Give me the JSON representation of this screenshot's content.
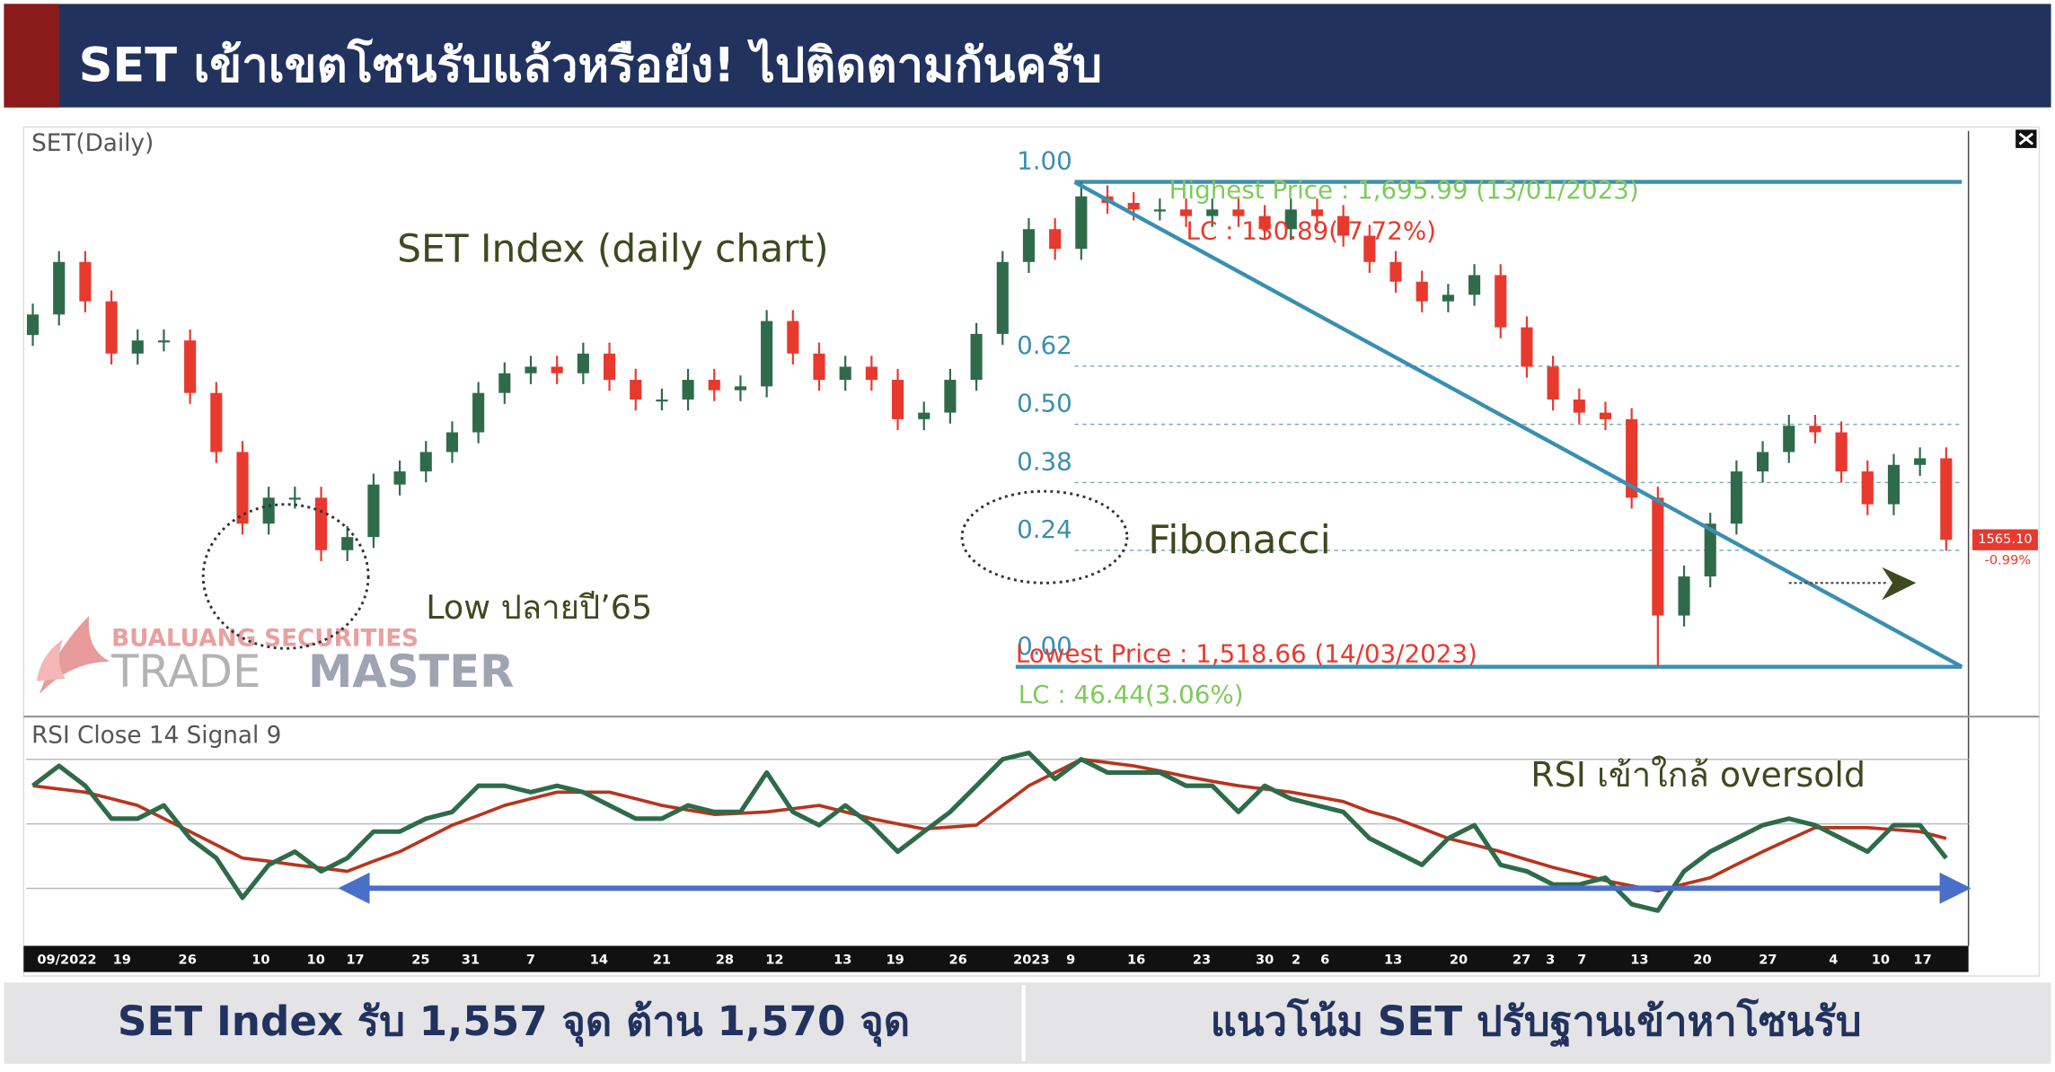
{
  "header": {
    "title": "SET เข้าเขตโซนรับแล้วหรือยัง! ไปติดตามกันครับ"
  },
  "chart_data": [
    {
      "type": "candlestick",
      "label": "SET(Daily)",
      "title": "SET Index (daily chart)",
      "open": [
        1640.0,
        1647.5,
        1666.7,
        1652.3,
        1633.2,
        1638.0,
        1638.0,
        1618.8,
        1597.2,
        1571.0,
        1580.5,
        1580.5,
        1561.3,
        1566.1,
        1585.3,
        1590.1,
        1597.2,
        1604.4,
        1618.8,
        1626.0,
        1628.4,
        1626.0,
        1633.2,
        1623.6,
        1616.4,
        1616.4,
        1623.6,
        1619.8,
        1621.2,
        1645.1,
        1633.2,
        1623.6,
        1628.4,
        1623.6,
        1609.2,
        1611.6,
        1623.6,
        1640.4,
        1666.7,
        1678.7,
        1671.5,
        1690.7,
        1688.3,
        1685.9,
        1685.9,
        1683.5,
        1685.9,
        1683.5,
        1678.7,
        1685.9,
        1683.5,
        1676.3,
        1666.7,
        1659.5,
        1652.3,
        1654.7,
        1661.9,
        1642.8,
        1628.4,
        1616.4,
        1611.6,
        1609.2,
        1580.5,
        1537.4,
        1551.7,
        1571.0,
        1590.1,
        1597.2,
        1606.8,
        1604.4,
        1590.1,
        1578.1,
        1592.5,
        1594.9
      ],
      "high": [
        1651.5,
        1670.7,
        1670.7,
        1656.3,
        1642.0,
        1642.0,
        1642.0,
        1622.8,
        1601.2,
        1584.5,
        1584.5,
        1584.5,
        1570.1,
        1589.3,
        1594.1,
        1601.2,
        1608.4,
        1622.8,
        1630.0,
        1632.4,
        1632.4,
        1637.2,
        1637.2,
        1627.6,
        1620.4,
        1627.6,
        1627.6,
        1625.2,
        1649.1,
        1649.1,
        1637.2,
        1632.4,
        1632.4,
        1627.6,
        1615.6,
        1627.6,
        1644.4,
        1670.7,
        1682.7,
        1682.7,
        1695.99,
        1694.7,
        1692.3,
        1689.9,
        1689.9,
        1689.9,
        1689.9,
        1687.5,
        1689.9,
        1689.9,
        1687.5,
        1680.3,
        1670.7,
        1663.5,
        1658.7,
        1665.9,
        1665.9,
        1646.8,
        1632.4,
        1620.4,
        1615.6,
        1613.2,
        1584.5,
        1555.7,
        1575.0,
        1594.1,
        1601.2,
        1610.8,
        1610.8,
        1608.4,
        1594.1,
        1596.5,
        1598.9,
        1598.9
      ],
      "low": [
        1636.0,
        1643.5,
        1648.3,
        1629.2,
        1629.2,
        1634.0,
        1614.8,
        1593.2,
        1567.0,
        1567.0,
        1576.5,
        1557.3,
        1557.3,
        1562.1,
        1581.3,
        1586.1,
        1593.2,
        1600.4,
        1614.8,
        1622.0,
        1622.0,
        1622.0,
        1619.6,
        1612.4,
        1612.4,
        1612.4,
        1615.8,
        1615.8,
        1617.2,
        1629.2,
        1619.6,
        1619.6,
        1619.6,
        1605.2,
        1605.2,
        1607.6,
        1619.6,
        1636.4,
        1662.7,
        1667.5,
        1667.5,
        1684.3,
        1681.9,
        1681.9,
        1679.5,
        1679.5,
        1679.5,
        1674.7,
        1674.7,
        1679.5,
        1672.3,
        1662.7,
        1655.5,
        1648.3,
        1648.3,
        1650.7,
        1638.8,
        1624.4,
        1612.4,
        1607.6,
        1605.2,
        1576.5,
        1518.66,
        1533.4,
        1547.7,
        1567.0,
        1586.1,
        1593.2,
        1600.4,
        1586.1,
        1574.1,
        1574.1,
        1588.5,
        1561.1
      ],
      "close": [
        1647.5,
        1666.7,
        1652.3,
        1633.2,
        1638.0,
        1638.0,
        1618.8,
        1597.2,
        1571.0,
        1580.5,
        1580.5,
        1561.3,
        1566.1,
        1585.3,
        1590.1,
        1597.2,
        1604.4,
        1618.8,
        1626.0,
        1628.4,
        1626.0,
        1633.2,
        1623.6,
        1616.4,
        1616.4,
        1623.6,
        1619.8,
        1621.2,
        1645.1,
        1633.2,
        1623.6,
        1628.4,
        1623.6,
        1609.2,
        1611.6,
        1623.6,
        1640.4,
        1666.7,
        1678.7,
        1671.5,
        1690.7,
        1688.3,
        1685.9,
        1685.9,
        1683.5,
        1685.9,
        1683.5,
        1678.7,
        1685.9,
        1683.5,
        1676.3,
        1666.7,
        1659.5,
        1652.3,
        1654.7,
        1661.9,
        1642.8,
        1628.4,
        1616.4,
        1611.6,
        1609.2,
        1580.5,
        1537.4,
        1551.7,
        1571.0,
        1590.1,
        1597.2,
        1606.8,
        1604.4,
        1590.1,
        1578.1,
        1592.5,
        1594.9,
        1565.1
      ],
      "colors": {
        "up": "#2f6b4a",
        "down": "#e8392e"
      },
      "xlim": [
        -0.25,
        73.85
      ],
      "ylim": [
        1501.4,
        1714.6
      ],
      "xticks": [
        {
          "value": 1.3,
          "label": "09/2022"
        },
        {
          "value": 3.4,
          "label": "19"
        },
        {
          "value": 5.9,
          "label": "26"
        },
        {
          "value": 8.7,
          "label": "10"
        },
        {
          "value": 10.8,
          "label": "10"
        },
        {
          "value": 12.3,
          "label": "17"
        },
        {
          "value": 14.8,
          "label": "25"
        },
        {
          "value": 16.7,
          "label": "31"
        },
        {
          "value": 19,
          "label": "7"
        },
        {
          "value": 21.6,
          "label": "14"
        },
        {
          "value": 24,
          "label": "21"
        },
        {
          "value": 26.4,
          "label": "28"
        },
        {
          "value": 28.3,
          "label": "12"
        },
        {
          "value": 30.9,
          "label": "13"
        },
        {
          "value": 32.9,
          "label": "19"
        },
        {
          "value": 35.3,
          "label": "26"
        },
        {
          "value": 38.1,
          "label": "2023"
        },
        {
          "value": 39.6,
          "label": "9"
        },
        {
          "value": 42.1,
          "label": "16"
        },
        {
          "value": 44.6,
          "label": "23"
        },
        {
          "value": 47,
          "label": "30"
        },
        {
          "value": 48.2,
          "label": "2"
        },
        {
          "value": 49.3,
          "label": "6"
        },
        {
          "value": 51.9,
          "label": "13"
        },
        {
          "value": 54.4,
          "label": "20"
        },
        {
          "value": 56.8,
          "label": "27"
        },
        {
          "value": 57.9,
          "label": "3"
        },
        {
          "value": 59.1,
          "label": "7"
        },
        {
          "value": 61.3,
          "label": "13"
        },
        {
          "value": 63.7,
          "label": "20"
        },
        {
          "value": 66.2,
          "label": "27"
        },
        {
          "value": 68.7,
          "label": "4"
        },
        {
          "value": 70.5,
          "label": "10"
        },
        {
          "value": 72.1,
          "label": "17"
        }
      ],
      "fibonacci": {
        "high": 1695.99,
        "low": 1518.66,
        "color": "#3a8fb0",
        "levels": [
          {
            "value": 1,
            "label": "1.00"
          },
          {
            "value": 0.62,
            "label": "0.62"
          },
          {
            "value": 0.5,
            "label": "0.50"
          },
          {
            "value": 0.38,
            "label": "0.38"
          },
          {
            "value": 0.24,
            "label": "0.24"
          },
          {
            "value": 0,
            "label": "0.00"
          }
        ],
        "name": "Fibonacci"
      },
      "annotations": {
        "highest": "Highest Price : 1,695.99 (13/01/2023)",
        "highest_lc": "LC : 130.89(-7.72%)",
        "lowest": "Lowest Price : 1,518.66 (14/03/2023)",
        "lowest_lc": "LC : 46.44(3.06%)",
        "low_note": "Low ปลายปี’65",
        "last_price": "1565.10",
        "last_change": "-0.99%"
      }
    },
    {
      "type": "line",
      "label": "RSI Close 14 Signal 9",
      "annotation": "RSI เข้าใกล้ oversold",
      "ylim": [
        13,
        80
      ],
      "grid_levels": [
        30,
        50,
        70
      ],
      "series": [
        {
          "color": "#2e6b4a",
          "values": [
            61.8,
            68.0,
            61.8,
            51.6,
            51.6,
            55.7,
            45.5,
            39.4,
            27.1,
            37.3,
            41.4,
            35.3,
            39.4,
            47.6,
            47.6,
            51.6,
            53.7,
            61.8,
            61.8,
            59.8,
            61.8,
            59.8,
            55.7,
            51.6,
            51.6,
            55.7,
            53.7,
            53.7,
            65.9,
            53.7,
            49.6,
            55.7,
            49.6,
            41.4,
            47.6,
            53.7,
            61.8,
            70.0,
            72.0,
            63.9,
            70.0,
            65.9,
            65.9,
            65.9,
            61.8,
            61.8,
            53.7,
            61.8,
            57.8,
            55.7,
            53.7,
            45.5,
            41.4,
            37.3,
            45.5,
            49.6,
            37.3,
            35.3,
            31.2,
            31.2,
            33.3,
            25.1,
            23.1,
            35.3,
            41.4,
            45.5,
            49.6,
            51.6,
            49.6,
            45.5,
            41.4,
            49.6,
            49.6,
            39.4
          ]
        },
        {
          "color": "#b8341e",
          "values": [
            61.8,
            60.8,
            59.8,
            57.8,
            55.7,
            51.6,
            47.6,
            43.5,
            39.4,
            38.4,
            37.3,
            36.3,
            35.3,
            38.4,
            41.4,
            45.5,
            49.6,
            52.6,
            55.7,
            57.8,
            59.8,
            59.8,
            59.8,
            57.8,
            55.7,
            54.3,
            52.9,
            53.3,
            53.7,
            54.7,
            55.7,
            53.7,
            51.6,
            50.0,
            48.4,
            49.0,
            49.6,
            55.7,
            61.8,
            65.9,
            70.0,
            69.0,
            68.0,
            66.4,
            64.7,
            63.2,
            61.8,
            60.8,
            59.8,
            58.4,
            56.9,
            53.8,
            51.6,
            48.6,
            45.5,
            43.5,
            41.4,
            38.9,
            36.5,
            34.5,
            32.4,
            30.8,
            29.2,
            31.3,
            33.3,
            37.4,
            41.4,
            45.1,
            48.8,
            48.8,
            48.8,
            48.2,
            47.6,
            45.5
          ]
        }
      ]
    }
  ],
  "watermark": {
    "company": "BUALUANG SECURITIES",
    "brand_1": "TRADE",
    "brand_2": "MASTER"
  },
  "footer": {
    "left": "SET Index รับ 1,557 จุด ต้าน 1,570 จุด",
    "right": "แนวโน้ม SET ปรับฐานเข้าหาโซนรับ"
  }
}
